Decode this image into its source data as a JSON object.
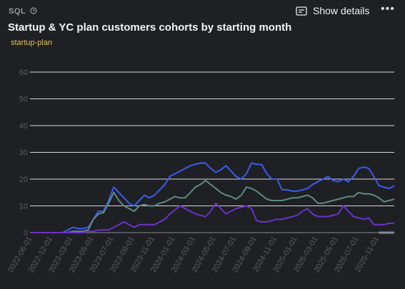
{
  "header": {
    "label": "SQL",
    "button": "Show details",
    "tag": "startup-plan"
  },
  "chart_data": {
    "type": "line",
    "title": "Startup & YC plan customers cohorts by starting month",
    "categories": [
      "2022-06-01",
      null,
      null,
      null,
      "2022-12-01",
      null,
      null,
      null,
      "2023-03-01",
      null,
      null,
      null,
      "2023-05-01",
      null,
      null,
      null,
      "2023-07-01",
      null,
      null,
      null,
      "2023-09-01",
      null,
      null,
      null,
      "2023-11-01",
      null,
      null,
      null,
      "2024-01-01",
      null,
      null,
      null,
      "2024-03-01",
      null,
      null,
      null,
      "2024-05-01",
      null,
      null,
      null,
      "2024-07-01",
      null,
      null,
      null,
      "2024-09-01",
      null,
      null,
      null,
      "2024-11-01",
      null,
      null,
      null,
      "2025-01-01",
      null,
      null,
      null,
      "2025-03-01",
      null,
      null,
      null,
      "2025-05-01",
      null,
      null,
      null,
      "2025-07-01",
      null,
      null,
      null,
      "2025-11-01",
      null,
      null,
      null
    ],
    "series": [
      {
        "color": "#3a5bf0",
        "values": [
          0,
          0,
          0,
          0,
          0,
          0,
          0,
          1,
          2,
          1.5,
          1.5,
          2,
          5,
          8,
          8,
          12,
          17,
          15,
          13,
          11,
          10,
          12,
          14,
          13,
          14,
          16,
          18,
          21,
          22,
          23,
          24,
          25,
          25.5,
          26,
          26,
          24,
          22.5,
          23.5,
          25,
          23,
          21,
          20,
          22,
          26,
          25.5,
          25.5,
          22,
          20,
          20,
          16,
          16,
          15.5,
          15.5,
          16,
          16.5,
          18,
          19,
          20,
          21,
          19.5,
          19,
          20,
          19,
          21,
          24,
          24.5,
          24,
          21,
          17.5,
          17,
          16.5,
          17.5
        ]
      },
      {
        "color": "#5f8a80",
        "values": [
          0,
          0,
          0,
          0,
          0,
          0,
          0,
          0,
          0.5,
          0.5,
          0.5,
          1,
          5,
          7,
          7.5,
          11,
          15,
          12,
          10,
          9,
          8,
          10,
          10.5,
          10,
          10,
          11,
          11.5,
          12.5,
          13.5,
          13,
          13,
          15,
          17,
          18,
          19.5,
          18,
          16.5,
          15,
          14,
          13.5,
          12.5,
          14,
          17,
          16.5,
          15.5,
          14,
          12.5,
          12,
          12,
          12,
          12.5,
          13,
          13,
          13.5,
          14,
          13,
          11,
          11,
          11.5,
          12,
          12.5,
          13,
          13.5,
          13.5,
          15,
          14.5,
          14.5,
          14,
          13,
          11.5,
          12,
          12.5
        ]
      },
      {
        "color": "#6a32c8",
        "values": [
          0,
          0,
          0,
          0,
          0,
          0,
          0,
          0,
          0,
          0,
          0,
          0.5,
          0.5,
          1,
          1,
          1,
          2,
          3,
          4,
          3,
          2,
          3,
          3,
          3,
          3,
          4,
          5,
          7,
          8.5,
          10,
          9,
          8,
          7,
          6.5,
          6,
          8,
          11,
          9,
          7,
          8,
          9,
          9.5,
          10,
          9,
          4.5,
          4,
          4,
          4.5,
          5,
          5,
          5.5,
          6,
          6.5,
          8,
          9,
          7,
          6,
          6,
          6,
          6.5,
          7,
          10,
          8,
          6,
          5.5,
          5,
          5.5,
          3,
          3,
          3,
          3.5,
          3.5
        ]
      },
      {
        "color": "#8a8c94",
        "values": [
          null,
          null,
          null,
          null,
          null,
          null,
          null,
          null,
          null,
          null,
          null,
          null,
          null,
          null,
          null,
          null,
          null,
          null,
          null,
          null,
          null,
          null,
          null,
          null,
          null,
          null,
          null,
          null,
          null,
          null,
          null,
          null,
          null,
          null,
          null,
          null,
          null,
          null,
          null,
          null,
          null,
          null,
          null,
          null,
          null,
          null,
          null,
          null,
          null,
          null,
          null,
          null,
          null,
          null,
          null,
          null,
          null,
          null,
          null,
          null,
          null,
          null,
          null,
          null,
          null,
          null,
          null,
          null,
          0,
          0,
          0,
          0
        ]
      }
    ],
    "ylim": [
      0,
      60
    ],
    "yticks": [
      0,
      10,
      20,
      30,
      40,
      50,
      60
    ],
    "grid": true
  }
}
